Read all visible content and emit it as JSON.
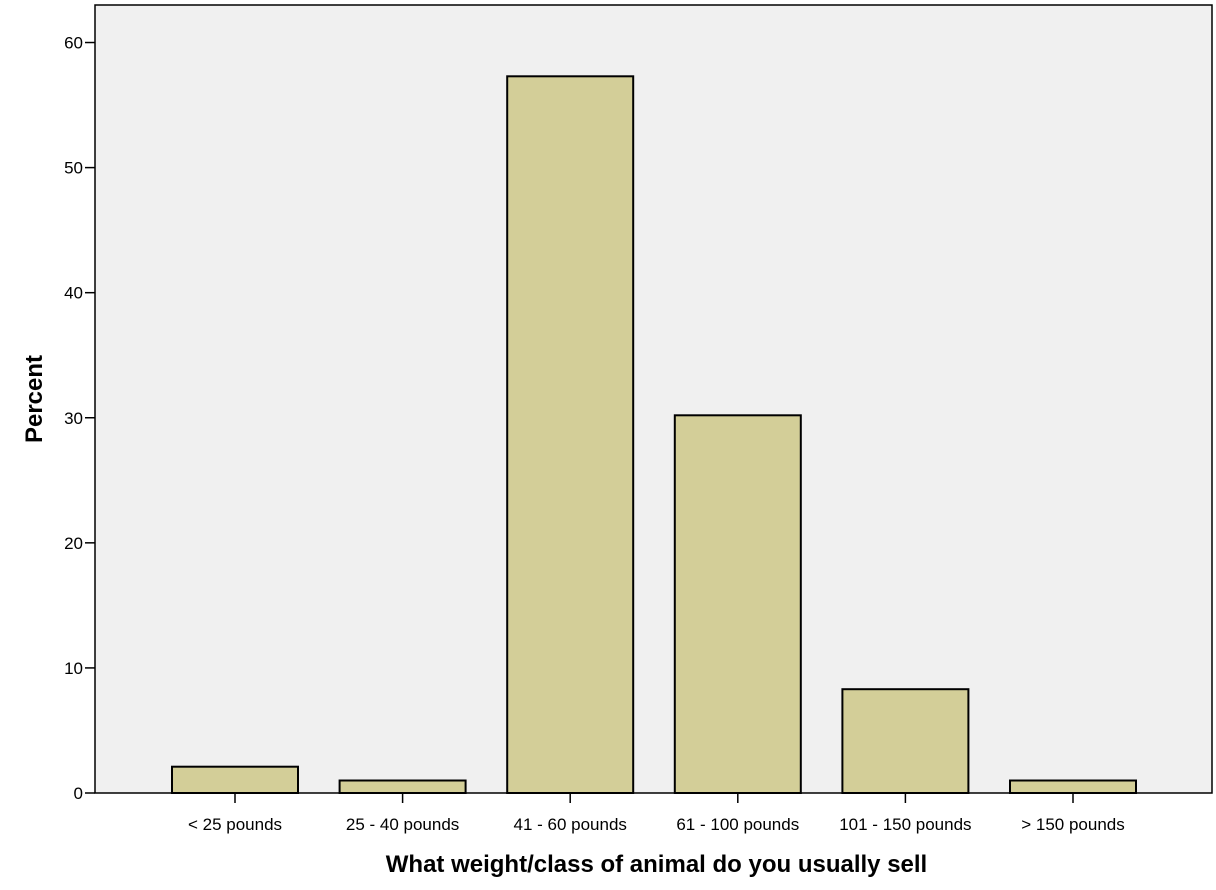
{
  "chart_data": {
    "type": "bar",
    "title": "",
    "xlabel": "What weight/class of animal do you usually sell",
    "ylabel": "Percent",
    "categories": [
      "< 25 pounds",
      "25 - 40 pounds",
      "41 - 60 pounds",
      "61 - 100 pounds",
      "101 - 150 pounds",
      "> 150 pounds"
    ],
    "values": [
      2.1,
      1.0,
      57.3,
      30.2,
      8.3,
      1.0
    ],
    "ylim": [
      0,
      63
    ],
    "yticks": [
      0,
      10,
      20,
      30,
      40,
      50,
      60
    ],
    "grid": false,
    "legend": "none",
    "colors": {
      "bar_fill": "#d3ce98",
      "bar_stroke": "#000000",
      "plot_background": "#f0f0f0",
      "axis": "#000000"
    }
  }
}
